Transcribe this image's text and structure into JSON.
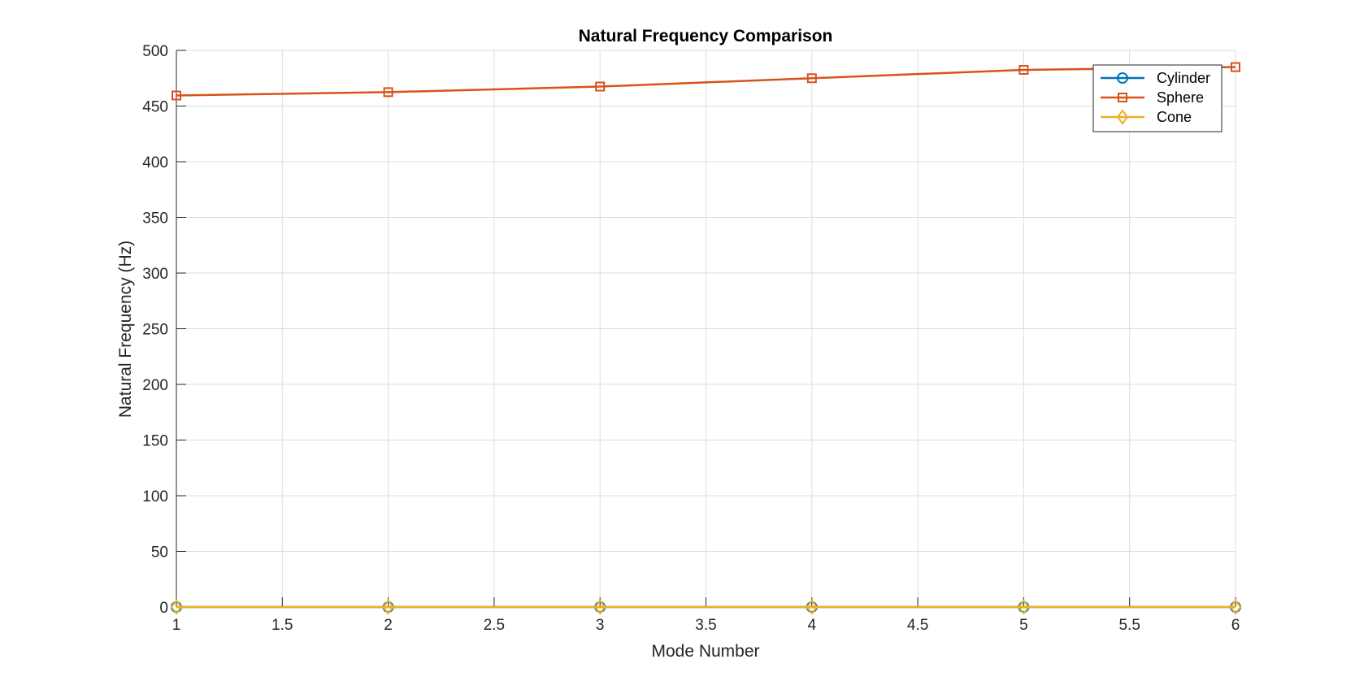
{
  "chart_data": {
    "type": "line",
    "title": "Natural Frequency Comparison",
    "xlabel": "Mode Number",
    "ylabel": "Natural Frequency (Hz)",
    "xlim": [
      1,
      6
    ],
    "ylim": [
      0,
      500
    ],
    "x": [
      1,
      2,
      3,
      4,
      5,
      6
    ],
    "xticks": [
      1,
      1.5,
      2,
      2.5,
      3,
      3.5,
      4,
      4.5,
      5,
      5.5,
      6
    ],
    "xtick_labels": [
      "1",
      "1.5",
      "2",
      "2.5",
      "3",
      "3.5",
      "4",
      "4.5",
      "5",
      "5.5",
      "6"
    ],
    "yticks": [
      0,
      50,
      100,
      150,
      200,
      250,
      300,
      350,
      400,
      450,
      500
    ],
    "ytick_labels": [
      "0",
      "50",
      "100",
      "150",
      "200",
      "250",
      "300",
      "350",
      "400",
      "450",
      "500"
    ],
    "grid": true,
    "legend_position": "top-right",
    "series": [
      {
        "name": "Cylinder",
        "values": [
          0,
          0,
          0,
          0,
          0,
          0
        ],
        "color": "#0072BD",
        "marker": "circle"
      },
      {
        "name": "Sphere",
        "values": [
          459.5,
          462.5,
          467.5,
          475,
          482.5,
          485
        ],
        "color": "#D95319",
        "marker": "square"
      },
      {
        "name": "Cone",
        "values": [
          0,
          0,
          0,
          0,
          0,
          0
        ],
        "color": "#EDB120",
        "marker": "diamond"
      }
    ]
  }
}
